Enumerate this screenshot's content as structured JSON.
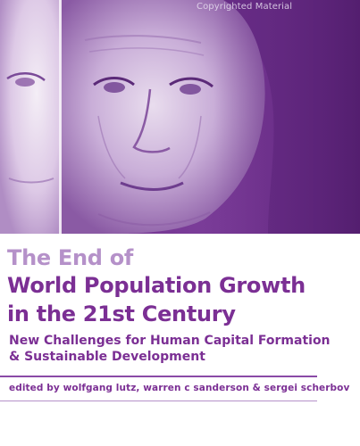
{
  "cover": {
    "watermark": "Copyrighted Material",
    "title_lines": [
      "The End of",
      "World Population Growth",
      "in the 21st Century"
    ],
    "subtitle_lines": [
      "New Challenges for Human Capital Formation",
      "& Sustainable Development"
    ],
    "editors_prefix": "edited by",
    "editors": "wolfgang lutz, warren c sanderson & sergei scherbov"
  },
  "colors": {
    "accent": "#7b2f94",
    "accent_light": "#b591c9",
    "photo_tint": "#7b3d96"
  },
  "icons": {
    "photo": "elderly-woman-portrait"
  }
}
